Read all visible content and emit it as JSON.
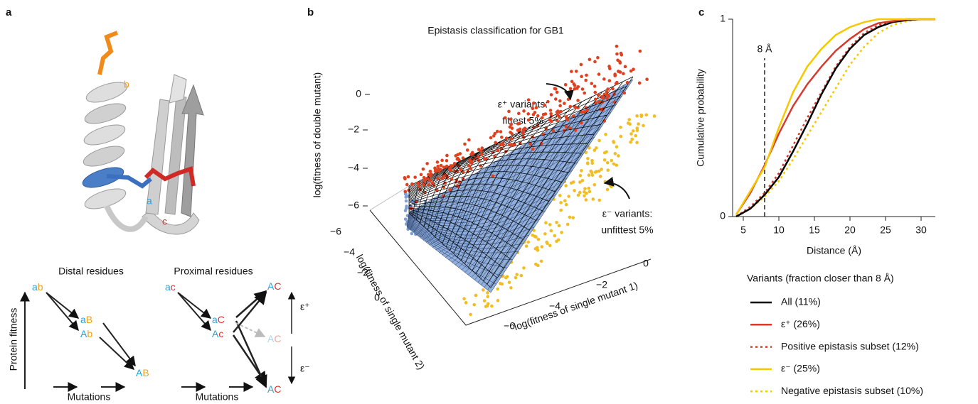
{
  "panel_a": {
    "label": "a",
    "structure_labels": {
      "b": "b",
      "a": "a",
      "c": "c"
    },
    "distal": {
      "title": "Distal residues",
      "nodes": [
        [
          "a",
          "b"
        ],
        [
          "a",
          "B"
        ],
        [
          "A",
          "b"
        ],
        [
          "A",
          "B"
        ]
      ]
    },
    "proximal": {
      "title": "Proximal residues",
      "nodes": [
        [
          "a",
          "c"
        ],
        [
          "a",
          "C"
        ],
        [
          "A",
          "c"
        ],
        [
          "A",
          "C"
        ],
        [
          "A",
          "C"
        ],
        [
          "A",
          "C"
        ]
      ],
      "epsilon_plus": "ε⁺",
      "epsilon_minus": "ε⁻"
    },
    "y_axis": "Protein fitness",
    "x_axis": [
      "Mutations",
      "Mutations"
    ]
  },
  "panel_b": {
    "label": "b",
    "title": "Epistasis classification for GB1",
    "z_label": "log(fitness of double mutant)",
    "z_ticks": [
      "0",
      "−2",
      "−4",
      "−6"
    ],
    "y_label": "log(fitness of single mutant 2)",
    "y_ticks": [
      "−6",
      "−4",
      "−2",
      "0"
    ],
    "x_label": "log(fitness of single mutant 1)",
    "x_ticks": [
      "−6",
      "−4",
      "−2",
      "0"
    ],
    "annotation_plus": [
      "ε⁺ variants:",
      "fittest 5%"
    ],
    "annotation_minus": [
      "ε⁻ variants:",
      "unfittest 5%"
    ]
  },
  "chart_data": {
    "type": "line",
    "label": "c",
    "xlabel": "Distance (Å)",
    "ylabel": "Cumulative probability",
    "x": [
      4,
      6,
      8,
      10,
      12,
      14,
      16,
      18,
      20,
      22,
      24,
      26,
      28,
      30,
      32
    ],
    "series": [
      {
        "name": "All (11%)",
        "color": "#000000",
        "dashed": false,
        "values": [
          0,
          0.04,
          0.11,
          0.2,
          0.33,
          0.47,
          0.62,
          0.75,
          0.85,
          0.92,
          0.96,
          0.985,
          0.995,
          1,
          1
        ]
      },
      {
        "name": "ε⁺ (26%)",
        "color": "#d7392f",
        "dashed": false,
        "values": [
          0.01,
          0.12,
          0.26,
          0.42,
          0.56,
          0.67,
          0.76,
          0.84,
          0.9,
          0.95,
          0.98,
          0.99,
          1,
          1,
          1
        ]
      },
      {
        "name": "Positive epistasis subset (12%)",
        "color": "#d7392f",
        "dashed": true,
        "values": [
          0,
          0.05,
          0.12,
          0.22,
          0.36,
          0.5,
          0.63,
          0.76,
          0.86,
          0.93,
          0.97,
          0.99,
          1,
          1,
          1
        ]
      },
      {
        "name": "ε⁻ (25%)",
        "color": "#f5c800",
        "dashed": false,
        "values": [
          0.01,
          0.13,
          0.25,
          0.45,
          0.63,
          0.76,
          0.85,
          0.92,
          0.96,
          0.985,
          1,
          1,
          1,
          1,
          1
        ]
      },
      {
        "name": "Negative epistasis subset (10%)",
        "color": "#f5c800",
        "dashed": true,
        "values": [
          0,
          0.04,
          0.1,
          0.18,
          0.29,
          0.41,
          0.53,
          0.65,
          0.77,
          0.86,
          0.93,
          0.97,
          0.99,
          1,
          1
        ]
      }
    ],
    "xlim": [
      3.5,
      32
    ],
    "ylim": [
      0,
      1
    ],
    "xticks": [
      5,
      10,
      15,
      20,
      25,
      30
    ],
    "yticks": [
      0,
      1
    ],
    "annotation": {
      "x": 8,
      "text": "8 Å"
    },
    "legend_title": "Variants (fraction closer than 8 Å)"
  }
}
